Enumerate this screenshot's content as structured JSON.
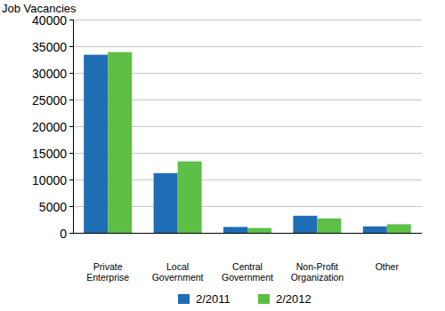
{
  "chart_data": {
    "type": "bar",
    "y_label": "Job Vacancies",
    "categories": [
      "Private Enterprise",
      "Local Government",
      "Central Government",
      "Non-Profit Organization",
      "Other"
    ],
    "series": [
      {
        "name": "2/2011",
        "color": "#1f6db5",
        "values": [
          33400,
          11200,
          1100,
          3200,
          1200
        ]
      },
      {
        "name": "2/2012",
        "color": "#5dbf45",
        "values": [
          33900,
          13400,
          900,
          2700,
          1600
        ]
      }
    ],
    "ylim": [
      0,
      40000
    ],
    "yticks": [
      0,
      5000,
      10000,
      15000,
      20000,
      25000,
      30000,
      35000,
      40000
    ],
    "grid": true,
    "legend": "bottom"
  }
}
